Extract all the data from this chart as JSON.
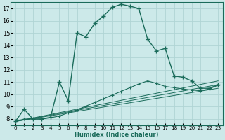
{
  "xlabel": "Humidex (Indice chaleur)",
  "bg_color": "#cce9e9",
  "grid_color": "#b0d4d4",
  "line_color": "#1a6b5a",
  "xlim": [
    -0.5,
    23.5
  ],
  "ylim": [
    7.5,
    17.5
  ],
  "xticks": [
    0,
    1,
    2,
    3,
    4,
    5,
    6,
    7,
    8,
    9,
    10,
    11,
    12,
    13,
    14,
    15,
    16,
    17,
    18,
    19,
    20,
    21,
    22,
    23
  ],
  "yticks": [
    8,
    9,
    10,
    11,
    12,
    13,
    14,
    15,
    16,
    17
  ],
  "curve1_x": [
    0,
    1,
    2,
    3,
    4,
    5,
    6,
    7,
    8,
    9,
    10,
    11,
    12,
    13,
    14,
    15,
    16,
    17,
    18,
    19,
    20,
    21,
    22,
    23
  ],
  "curve1_y": [
    7.8,
    8.8,
    8.0,
    8.0,
    8.15,
    11.0,
    9.5,
    15.0,
    14.7,
    15.8,
    16.4,
    17.1,
    17.35,
    17.2,
    17.0,
    14.5,
    13.55,
    13.75,
    11.5,
    11.4,
    11.1,
    10.5,
    10.5,
    10.8
  ],
  "curve2_x": [
    0,
    1,
    2,
    3,
    4,
    5,
    6,
    7,
    8,
    9,
    10,
    11,
    12,
    13,
    14,
    15,
    16,
    17,
    18,
    19,
    20,
    21,
    22,
    23
  ],
  "curve2_y": [
    7.8,
    8.0,
    8.0,
    8.0,
    8.1,
    8.25,
    8.5,
    8.75,
    9.05,
    9.35,
    9.65,
    9.95,
    10.25,
    10.55,
    10.85,
    11.1,
    10.9,
    10.65,
    10.55,
    10.45,
    10.35,
    10.3,
    10.45,
    10.75
  ],
  "line1": [
    [
      0,
      23
    ],
    [
      7.8,
      10.5
    ]
  ],
  "line2": [
    [
      0,
      23
    ],
    [
      7.8,
      10.8
    ]
  ],
  "line3": [
    [
      0,
      23
    ],
    [
      7.8,
      11.1
    ]
  ]
}
